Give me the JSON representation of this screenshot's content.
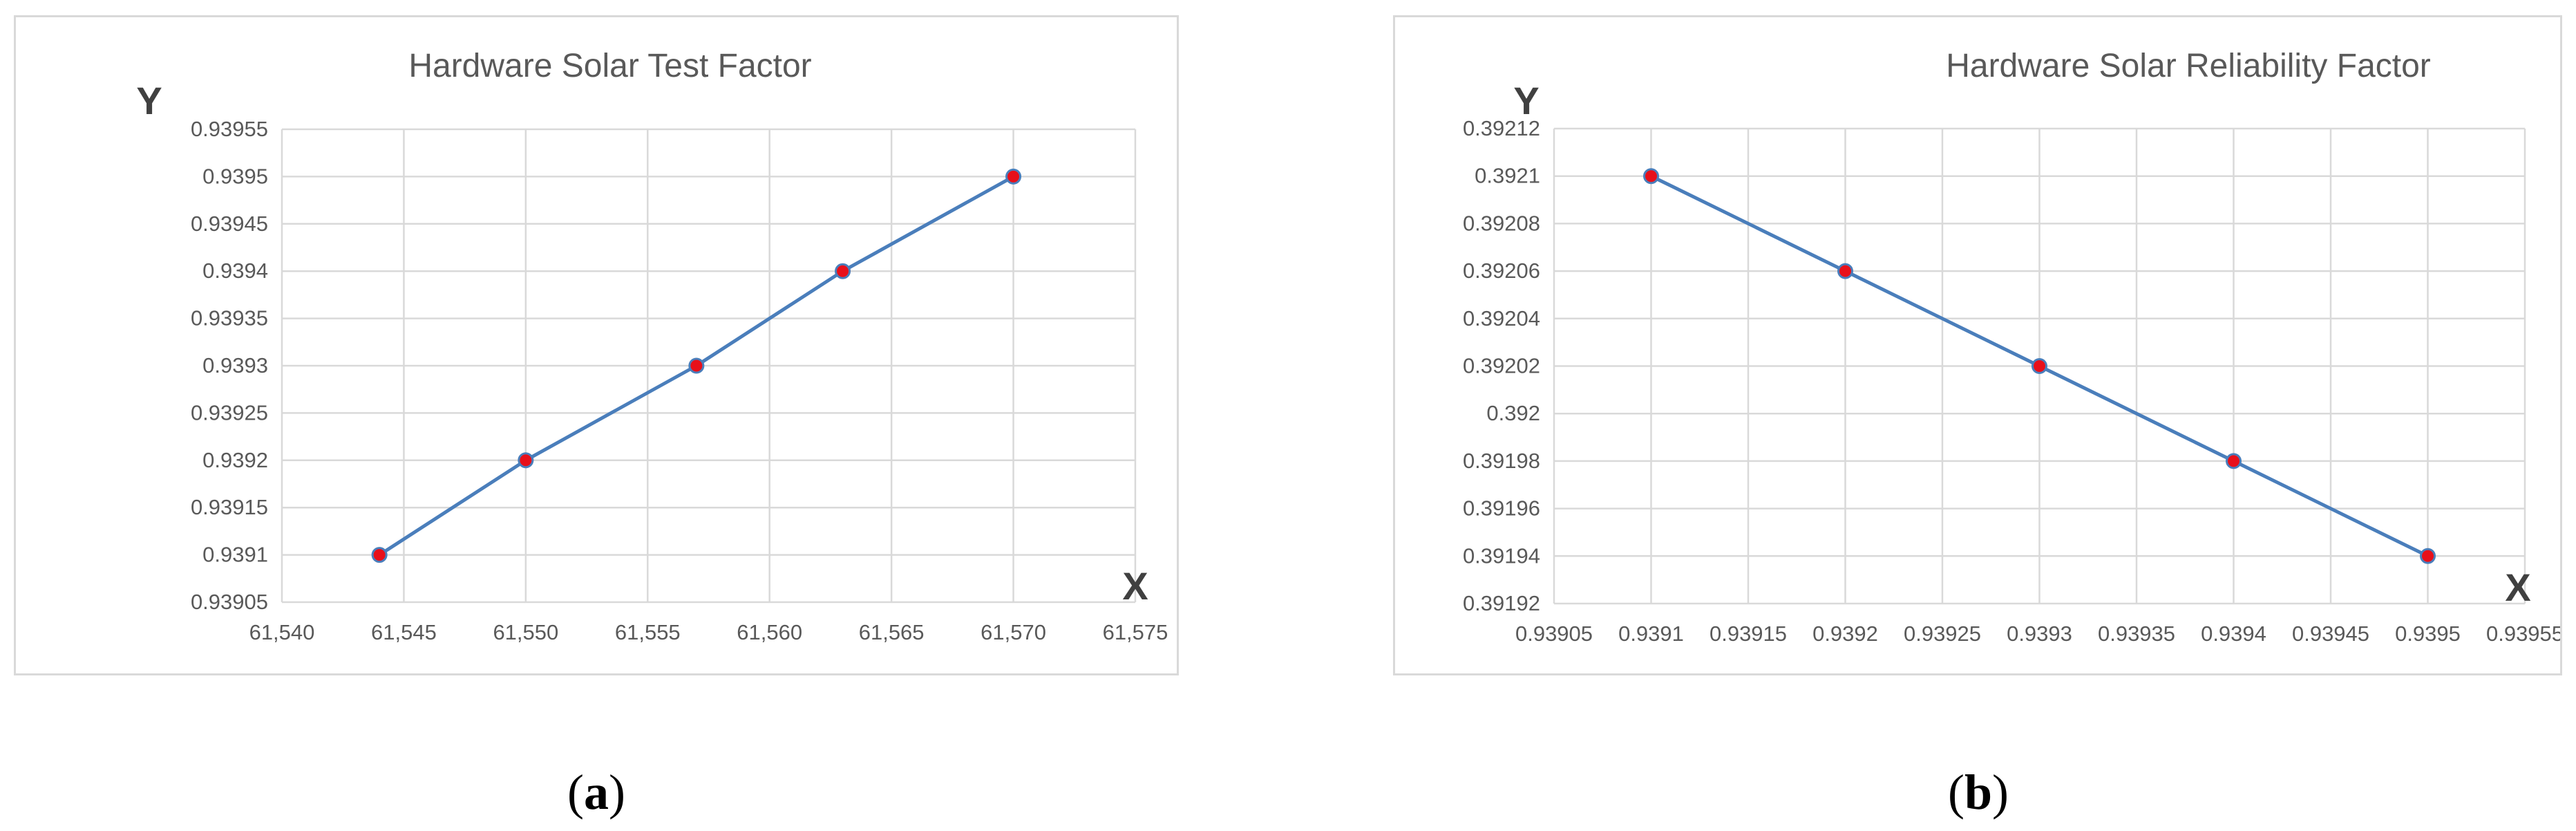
{
  "chart_data": [
    {
      "type": "line",
      "title": "Hardware Solar Test Factor",
      "xlabel": "X",
      "ylabel": "Y",
      "xlim": [
        61540,
        61575
      ],
      "ylim": [
        0.93905,
        0.93955
      ],
      "x_ticks": [
        61540,
        61545,
        61550,
        61555,
        61560,
        61565,
        61570,
        61575
      ],
      "x_tick_labels": [
        "61,540",
        "61,545",
        "61,550",
        "61,555",
        "61,560",
        "61,565",
        "61,570",
        "61,575"
      ],
      "y_ticks": [
        0.93905,
        0.9391,
        0.93915,
        0.9392,
        0.93925,
        0.9393,
        0.93935,
        0.9394,
        0.93945,
        0.9395,
        0.93955
      ],
      "y_tick_labels": [
        "0.93905",
        "0.9391",
        "0.93915",
        "0.9392",
        "0.93925",
        "0.9393",
        "0.93935",
        "0.9394",
        "0.93945",
        "0.9395",
        "0.93955"
      ],
      "grid": true,
      "series": [
        {
          "x": [
            61544,
            61550,
            61557,
            61563,
            61570
          ],
          "y": [
            0.9391,
            0.9392,
            0.9393,
            0.9394,
            0.9395
          ]
        }
      ],
      "line_color": "#4a7ebb",
      "marker_color": "#e8101a",
      "caption": {
        "open": "(",
        "letter": "a",
        "close": ")"
      }
    },
    {
      "type": "line",
      "title": "Hardware Solar Reliability Factor",
      "xlabel": "X",
      "ylabel": "Y",
      "xlim": [
        0.93905,
        0.93955
      ],
      "ylim": [
        0.39192,
        0.39212
      ],
      "x_ticks": [
        0.93905,
        0.9391,
        0.93915,
        0.9392,
        0.93925,
        0.9393,
        0.93935,
        0.9394,
        0.93945,
        0.9395,
        0.93955
      ],
      "x_tick_labels": [
        "0.93905",
        "0.9391",
        "0.93915",
        "0.9392",
        "0.93925",
        "0.9393",
        "0.93935",
        "0.9394",
        "0.93945",
        "0.9395",
        "0.93955"
      ],
      "y_ticks": [
        0.39192,
        0.39194,
        0.39196,
        0.39198,
        0.392,
        0.39202,
        0.39204,
        0.39206,
        0.39208,
        0.3921,
        0.39212
      ],
      "y_tick_labels": [
        "0.39192",
        "0.39194",
        "0.39196",
        "0.39198",
        "0.392",
        "0.39202",
        "0.39204",
        "0.39206",
        "0.39208",
        "0.3921",
        "0.39212"
      ],
      "grid": true,
      "series": [
        {
          "x": [
            0.9391,
            0.9392,
            0.9393,
            0.9394,
            0.9395
          ],
          "y": [
            0.3921,
            0.39206,
            0.39202,
            0.39198,
            0.39194
          ]
        }
      ],
      "line_color": "#4a7ebb",
      "marker_color": "#e8101a",
      "caption": {
        "open": "(",
        "letter": "b",
        "close": ")"
      }
    }
  ]
}
